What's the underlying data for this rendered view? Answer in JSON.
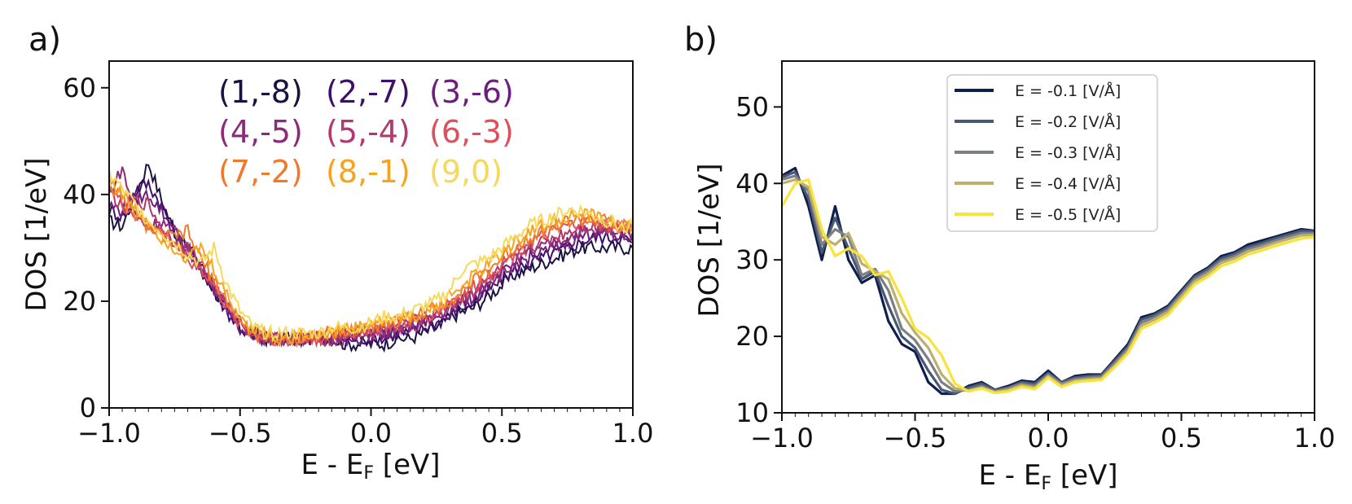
{
  "chart_data": [
    {
      "panel": "a)",
      "type": "line",
      "xlabel": "E - E",
      "xlabel_sub": "F",
      "xlabel_unit": " [eV]",
      "ylabel": "DOS [1/eV]",
      "xlim": [
        -1.0,
        1.0
      ],
      "ylim": [
        0,
        65
      ],
      "xticks": [
        "−1.0",
        "−0.5",
        "0.0",
        "0.5",
        "1.0"
      ],
      "xtick_values": [
        -1.0,
        -0.5,
        0.0,
        0.5,
        1.0
      ],
      "yticks": [
        "0",
        "20",
        "40",
        "60"
      ],
      "ytick_values": [
        0,
        20,
        40,
        60
      ],
      "legend_position": "top-center",
      "x": [
        -1.0,
        -0.95,
        -0.9,
        -0.85,
        -0.8,
        -0.75,
        -0.7,
        -0.65,
        -0.6,
        -0.55,
        -0.5,
        -0.45,
        -0.4,
        -0.35,
        -0.3,
        -0.25,
        -0.2,
        -0.15,
        -0.1,
        -0.05,
        0.0,
        0.05,
        0.1,
        0.15,
        0.2,
        0.25,
        0.3,
        0.35,
        0.4,
        0.45,
        0.5,
        0.55,
        0.6,
        0.65,
        0.7,
        0.75,
        0.8,
        0.85,
        0.9,
        0.95,
        1.0
      ],
      "series": [
        {
          "name": "(1,-8)",
          "color": "#1a1340",
          "values": [
            35,
            34,
            40,
            46,
            39,
            33,
            30,
            27,
            22,
            18,
            15,
            14,
            13,
            13,
            13,
            13,
            13,
            13,
            12,
            12,
            12,
            12,
            13,
            13,
            14,
            15,
            17,
            18,
            19,
            21,
            23,
            25,
            26,
            27,
            28,
            29,
            30,
            30,
            30,
            30,
            30
          ]
        },
        {
          "name": "(2,-7)",
          "color": "#3d0f6b",
          "values": [
            37,
            36,
            41,
            42,
            38,
            33,
            29,
            26,
            22,
            18,
            15,
            13,
            13,
            13,
            13,
            13,
            13,
            13,
            13,
            13,
            13,
            13,
            14,
            14,
            15,
            16,
            17,
            19,
            20,
            22,
            24,
            26,
            27,
            28,
            29,
            30,
            31,
            32,
            32,
            32,
            31
          ]
        },
        {
          "name": "(3,-6)",
          "color": "#6b1e7e",
          "values": [
            38,
            37,
            39,
            40,
            37,
            33,
            30,
            26,
            22,
            19,
            15,
            14,
            13,
            13,
            13,
            13,
            13,
            13,
            13,
            13,
            14,
            14,
            14,
            15,
            16,
            17,
            18,
            20,
            21,
            23,
            25,
            27,
            28,
            29,
            30,
            31,
            32,
            33,
            33,
            32,
            32
          ]
        },
        {
          "name": "(4,-5)",
          "color": "#8d2a7a",
          "values": [
            40,
            45,
            36,
            34,
            35,
            33,
            30,
            26,
            23,
            19,
            16,
            14,
            13,
            13,
            13,
            13,
            13,
            13,
            13,
            14,
            14,
            14,
            15,
            15,
            16,
            17,
            19,
            20,
            22,
            24,
            25,
            27,
            29,
            30,
            31,
            32,
            33,
            33,
            33,
            33,
            33
          ]
        },
        {
          "name": "(5,-4)",
          "color": "#b3386e",
          "values": [
            41,
            37,
            39,
            38,
            34,
            31,
            30,
            27,
            23,
            19,
            16,
            14,
            13,
            13,
            13,
            13,
            13,
            13,
            14,
            14,
            14,
            15,
            15,
            16,
            17,
            18,
            19,
            21,
            22,
            24,
            26,
            28,
            30,
            31,
            32,
            33,
            34,
            34,
            34,
            34,
            33
          ]
        },
        {
          "name": "(6,-3)",
          "color": "#dd4f5a",
          "values": [
            42,
            38,
            36,
            34,
            33,
            31,
            28,
            26,
            23,
            19,
            16,
            14,
            13,
            13,
            13,
            13,
            13,
            14,
            14,
            14,
            15,
            15,
            16,
            16,
            17,
            18,
            20,
            21,
            23,
            25,
            27,
            29,
            31,
            32,
            33,
            34,
            35,
            35,
            34,
            34,
            34
          ]
        },
        {
          "name": "(7,-2)",
          "color": "#f07a2c",
          "values": [
            42,
            39,
            36,
            34,
            32,
            32,
            33,
            28,
            24,
            20,
            16,
            14,
            13,
            13,
            13,
            13,
            14,
            14,
            14,
            15,
            15,
            16,
            16,
            17,
            18,
            19,
            20,
            22,
            24,
            26,
            28,
            30,
            32,
            33,
            34,
            35,
            35,
            35,
            35,
            34,
            34
          ]
        },
        {
          "name": "(8,-1)",
          "color": "#f7a41d",
          "values": [
            43,
            40,
            37,
            35,
            32,
            30,
            28,
            30,
            26,
            21,
            17,
            15,
            14,
            13,
            13,
            14,
            14,
            14,
            15,
            15,
            16,
            16,
            17,
            17,
            18,
            19,
            21,
            23,
            25,
            27,
            29,
            31,
            33,
            34,
            35,
            36,
            36,
            36,
            35,
            34,
            34
          ]
        },
        {
          "name": "(9,0)",
          "color": "#f6d85a",
          "values": [
            44,
            41,
            38,
            35,
            33,
            31,
            29,
            27,
            30,
            23,
            18,
            15,
            14,
            14,
            14,
            14,
            14,
            15,
            15,
            15,
            16,
            17,
            17,
            18,
            19,
            20,
            22,
            26,
            27,
            28,
            30,
            32,
            34,
            35,
            36,
            37,
            37,
            36,
            35,
            34,
            34
          ]
        }
      ]
    },
    {
      "panel": "b)",
      "type": "line",
      "xlabel": "E - E",
      "xlabel_sub": "F",
      "xlabel_unit": " [eV]",
      "ylabel": "DOS [1/eV]",
      "xlim": [
        -1.0,
        1.0
      ],
      "ylim": [
        10,
        56
      ],
      "xticks": [
        "−1.0",
        "−0.5",
        "0.0",
        "0.5",
        "1.0"
      ],
      "xtick_values": [
        -1.0,
        -0.5,
        0.0,
        0.5,
        1.0
      ],
      "yticks": [
        "10",
        "20",
        "30",
        "40",
        "50"
      ],
      "ytick_values": [
        10,
        20,
        30,
        40,
        50
      ],
      "legend_position": "top-center",
      "x": [
        -1.0,
        -0.95,
        -0.9,
        -0.85,
        -0.8,
        -0.75,
        -0.7,
        -0.65,
        -0.6,
        -0.55,
        -0.5,
        -0.45,
        -0.4,
        -0.35,
        -0.3,
        -0.25,
        -0.2,
        -0.15,
        -0.1,
        -0.05,
        0.0,
        0.05,
        0.1,
        0.15,
        0.2,
        0.25,
        0.3,
        0.35,
        0.4,
        0.45,
        0.5,
        0.55,
        0.6,
        0.65,
        0.7,
        0.75,
        0.8,
        0.85,
        0.9,
        0.95,
        1.0
      ],
      "series": [
        {
          "name": "E = -0.1 [V/Å]",
          "color": "#0f1f4d",
          "values": [
            41,
            42,
            37,
            30,
            37,
            30,
            27,
            28,
            22,
            19,
            18,
            14,
            12.5,
            12.5,
            13.5,
            14,
            13,
            13.5,
            14.2,
            14,
            15.5,
            14,
            14.8,
            15,
            15,
            17,
            19,
            22.5,
            23,
            24,
            26,
            28,
            29,
            30.5,
            31,
            32,
            32.5,
            33,
            33.5,
            34,
            33.8
          ]
        },
        {
          "name": "E = -0.2 [V/Å]",
          "color": "#485873",
          "values": [
            40.8,
            41.5,
            38,
            31,
            35.5,
            31.5,
            27.5,
            28.5,
            24,
            20,
            18.5,
            15.5,
            13,
            12.5,
            13.3,
            13.8,
            13,
            13.3,
            14,
            13.8,
            15.2,
            14,
            14.6,
            14.8,
            14.9,
            16.8,
            18.7,
            22.2,
            22.8,
            23.8,
            25.8,
            27.8,
            28.8,
            30.2,
            30.8,
            31.7,
            32.2,
            32.8,
            33.3,
            33.8,
            33.7
          ]
        },
        {
          "name": "E = -0.3 [V/Å]",
          "color": "#7c7f85",
          "values": [
            40.5,
            41,
            39,
            32,
            34,
            33,
            28,
            28.8,
            26,
            21,
            19.5,
            17,
            14,
            12.8,
            13,
            13.5,
            12.8,
            13.2,
            13.8,
            13.5,
            15,
            13.8,
            14.4,
            14.6,
            14.7,
            16.5,
            18.4,
            21.8,
            22.5,
            23.5,
            25.5,
            27.5,
            28.5,
            29.9,
            30.5,
            31.4,
            31.9,
            32.5,
            33,
            33.5,
            33.5
          ]
        },
        {
          "name": "E = -0.4 [V/Å]",
          "color": "#bdb06d",
          "values": [
            40,
            40.5,
            39.5,
            33,
            32,
            33.5,
            29.5,
            28.5,
            27.5,
            23,
            20.5,
            18.5,
            15,
            13.2,
            12.9,
            13.3,
            12.7,
            13,
            13.6,
            13.3,
            14.8,
            13.6,
            14.2,
            14.4,
            14.5,
            16.2,
            18.1,
            21.4,
            22.2,
            23.2,
            25.2,
            27.2,
            28.2,
            29.6,
            30.2,
            31.1,
            31.6,
            32.2,
            32.7,
            33.2,
            33.3
          ]
        },
        {
          "name": "E = -0.5 [V/Å]",
          "color": "#f8e33a",
          "values": [
            37,
            40,
            40.5,
            34,
            30.5,
            31.5,
            30.5,
            28,
            28.5,
            25,
            21,
            19.8,
            17.5,
            13.8,
            12.8,
            13.2,
            12.6,
            12.8,
            13.4,
            13.1,
            14.6,
            13.4,
            14,
            14.2,
            14.3,
            16,
            17.8,
            21,
            21.8,
            22.8,
            24.8,
            26.8,
            27.8,
            29.2,
            29.8,
            30.7,
            31.2,
            31.8,
            32.3,
            32.8,
            33
          ]
        }
      ]
    }
  ]
}
